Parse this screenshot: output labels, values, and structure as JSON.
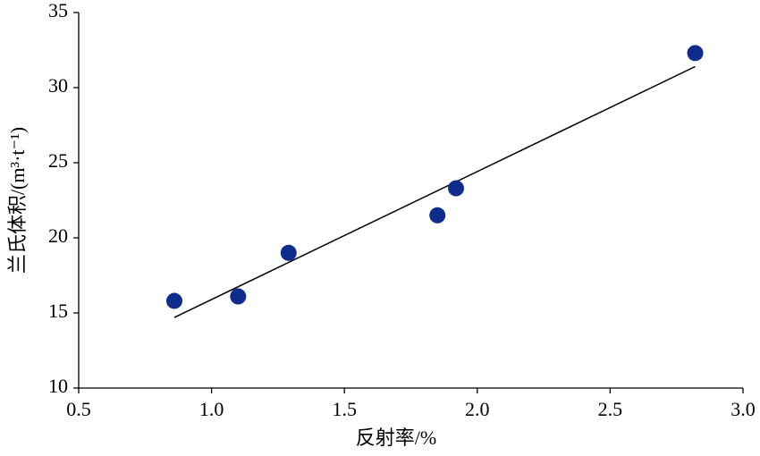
{
  "chart_data": {
    "type": "scatter",
    "x_label": "反射率/%",
    "y_label": "兰氏体积/(m³·t⁻¹)",
    "xlim": [
      0.5,
      3.0
    ],
    "xticks": [
      0.5,
      {
        "value": 1,
        "label": "1.0"
      },
      1.5,
      {
        "value": 2,
        "label": "2.0"
      },
      2.5,
      {
        "value": 3,
        "label": "3.0"
      }
    ],
    "ylim": [
      10,
      35
    ],
    "yticks": [
      10,
      15,
      20,
      25,
      30,
      35
    ],
    "grid": false,
    "series": [
      {
        "color": "#0d2c8c",
        "x": [
          0.86,
          1.1,
          1.29,
          1.85,
          1.92,
          2.82
        ],
        "values": [
          15.8,
          16.1,
          19.0,
          21.5,
          23.3,
          32.3
        ]
      }
    ],
    "trendline": {
      "color": "#000000",
      "x": [
        0.86,
        2.82
      ],
      "values": [
        14.7,
        31.4
      ]
    }
  }
}
